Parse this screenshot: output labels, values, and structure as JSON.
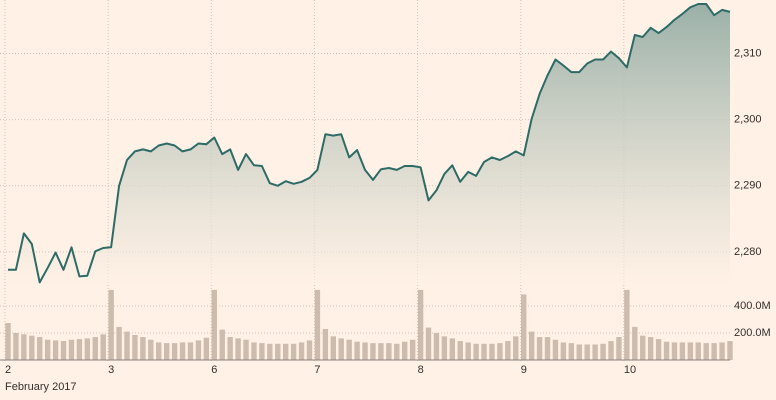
{
  "chart_data": [
    {
      "type": "area",
      "color": "#2d6b67",
      "xlabel": "February 2017",
      "categories": [
        "2",
        null,
        null,
        null,
        null,
        null,
        null,
        null,
        null,
        null,
        null,
        null,
        null,
        "3",
        null,
        null,
        null,
        null,
        null,
        null,
        null,
        null,
        null,
        null,
        null,
        null,
        "6",
        null,
        null,
        null,
        null,
        null,
        null,
        null,
        null,
        null,
        null,
        null,
        null,
        "7",
        null,
        null,
        null,
        null,
        null,
        null,
        null,
        null,
        null,
        null,
        null,
        null,
        "8",
        null,
        null,
        null,
        null,
        null,
        null,
        null,
        null,
        null,
        null,
        null,
        null,
        "9",
        null,
        null,
        null,
        null,
        null,
        null,
        null,
        null,
        null,
        null,
        null,
        null,
        "10",
        null,
        null,
        null,
        null,
        null,
        null,
        null,
        null,
        null,
        null,
        null,
        null,
        null
      ],
      "values": [
        2277.3,
        2277.3,
        2282.8,
        2281.2,
        2275.4,
        2277.6,
        2279.9,
        2277.3,
        2280.7,
        2276.3,
        2276.4,
        2280.1,
        2280.6,
        2280.7,
        2290,
        2293.9,
        2295.2,
        2295.5,
        2295.2,
        2296.1,
        2296.4,
        2296.1,
        2295.2,
        2295.5,
        2296.4,
        2296.3,
        2297.3,
        2294.8,
        2295.5,
        2292.4,
        2294.8,
        2293.1,
        2293,
        2290.4,
        2290,
        2290.7,
        2290.3,
        2290.6,
        2291.2,
        2292.4,
        2297.8,
        2297.6,
        2297.8,
        2294.3,
        2295.4,
        2292.4,
        2290.9,
        2292.5,
        2292.7,
        2292.4,
        2293,
        2293,
        2292.8,
        2287.8,
        2289.3,
        2291.8,
        2293.1,
        2290.6,
        2292.1,
        2291.5,
        2293.6,
        2294.3,
        2293.9,
        2294.5,
        2295.2,
        2294.6,
        2300.1,
        2303.9,
        2306.7,
        2309.1,
        2308.2,
        2307.2,
        2307.2,
        2308.5,
        2309.1,
        2309.1,
        2310.3,
        2309.3,
        2307.9,
        2312.8,
        2312.5,
        2313.9,
        2313.1,
        2314,
        2315.1,
        2316,
        2317,
        2317.5,
        2317.5,
        2315.8,
        2316.6,
        2316.3
      ],
      "ylim": [
        2275,
        2318.1
      ],
      "yticks": [
        {
          "value": 2280,
          "label": "2,280"
        },
        {
          "value": 2290,
          "label": "2,290"
        },
        {
          "value": 2300,
          "label": "2,300"
        },
        {
          "value": 2310,
          "label": "2,310"
        }
      ],
      "grid": true
    },
    {
      "type": "bar",
      "color": "#cdbcad",
      "values": [
        274,
        200,
        190,
        180,
        170,
        150,
        145,
        140,
        150,
        155,
        160,
        170,
        190,
        519,
        245,
        210,
        185,
        170,
        150,
        130,
        125,
        125,
        130,
        130,
        145,
        165,
        519,
        225,
        170,
        160,
        150,
        130,
        125,
        120,
        120,
        120,
        120,
        130,
        145,
        519,
        230,
        175,
        160,
        150,
        135,
        130,
        125,
        125,
        125,
        120,
        135,
        150,
        519,
        240,
        200,
        175,
        160,
        140,
        130,
        120,
        120,
        120,
        125,
        140,
        175,
        485,
        210,
        170,
        170,
        150,
        130,
        125,
        115,
        115,
        115,
        120,
        140,
        170,
        519,
        245,
        180,
        170,
        155,
        135,
        130,
        130,
        130,
        130,
        125,
        125,
        130,
        140
      ],
      "ylim": [
        0,
        533
      ],
      "yticks": [
        {
          "value": 200,
          "label": "200.0M"
        },
        {
          "value": 400,
          "label": "400.0M"
        }
      ],
      "grid": true
    }
  ]
}
